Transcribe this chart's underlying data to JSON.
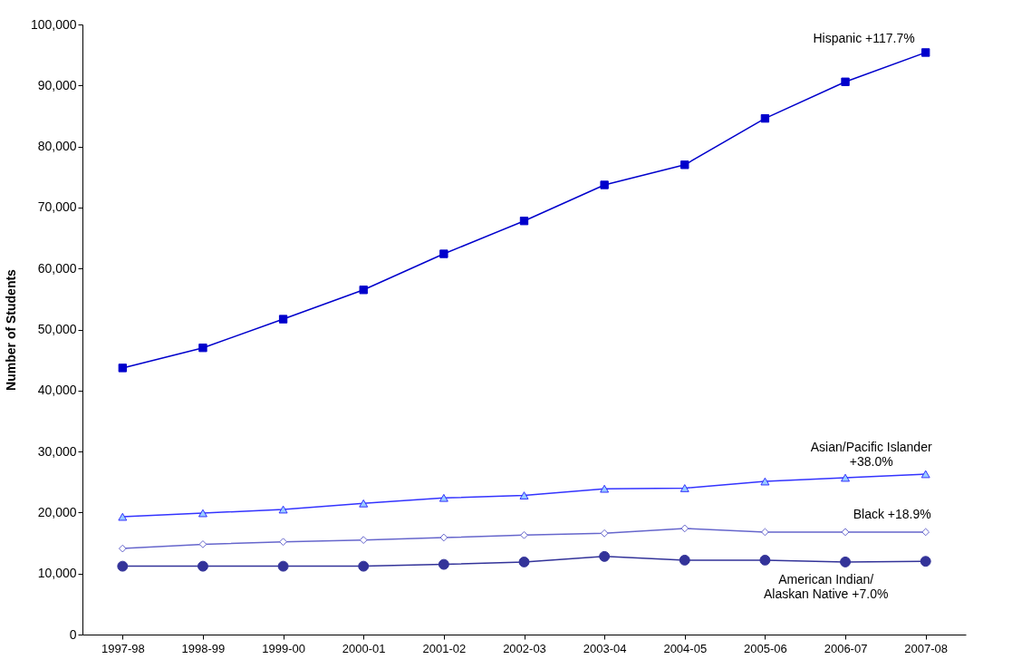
{
  "chart_data": {
    "type": "line",
    "ylabel": "Number of Students",
    "categories": [
      "1997-98",
      "1998-99",
      "1999-00",
      "2000-01",
      "2001-02",
      "2002-03",
      "2003-04",
      "2004-05",
      "2005-06",
      "2006-07",
      "2007-08"
    ],
    "series": [
      {
        "name": "Hispanic +117.7%",
        "color": "#0000cc",
        "marker": "square",
        "values": [
          43700,
          47000,
          51700,
          56500,
          62400,
          67800,
          73700,
          77000,
          84600,
          90600,
          95400
        ]
      },
      {
        "name": "Asian/Pacific Islander\n+38.0%",
        "color": "#3333ff",
        "marker": "triangle",
        "values": [
          19300,
          19900,
          20500,
          21500,
          22400,
          22800,
          23900,
          24000,
          25100,
          25700,
          26300
        ]
      },
      {
        "name": "Black +18.9%",
        "color": "#6666cc",
        "marker": "diamond",
        "values": [
          14100,
          14800,
          15200,
          15500,
          15900,
          16300,
          16600,
          17400,
          16800,
          16800,
          16800
        ]
      },
      {
        "name": "American Indian/\nAlaskan Native +7.0%",
        "color": "#333399",
        "marker": "circle",
        "values": [
          11200,
          11200,
          11200,
          11200,
          11500,
          11900,
          12800,
          12200,
          12200,
          11900,
          12000
        ]
      }
    ],
    "ylim": [
      0,
      100000
    ],
    "yticks": [
      0,
      {
        "value": 10000,
        "label": "10,000"
      },
      {
        "value": 20000,
        "label": "20,000"
      },
      {
        "value": 30000,
        "label": "30,000"
      },
      {
        "value": 40000,
        "label": "40,000"
      },
      {
        "value": 50000,
        "label": "50,000"
      },
      {
        "value": 60000,
        "label": "60,000"
      },
      {
        "value": 70000,
        "label": "70,000"
      },
      {
        "value": 80000,
        "label": "80,000"
      },
      {
        "value": 90000,
        "label": "90,000"
      },
      {
        "value": 100000,
        "label": "100,000"
      }
    ],
    "grid": false,
    "legend": false
  }
}
